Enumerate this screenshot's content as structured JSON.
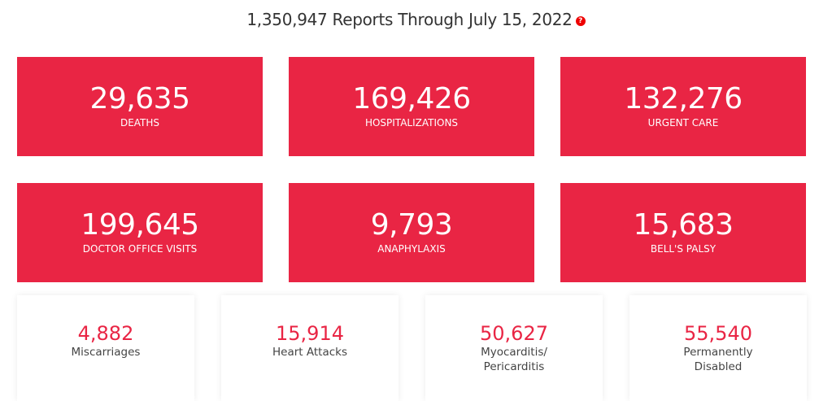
{
  "header": {
    "title": "1,350,947 Reports Through July 15, 2022",
    "help_icon": "?"
  },
  "primary_stats": [
    {
      "value": "29,635",
      "label": "DEATHS"
    },
    {
      "value": "169,426",
      "label": "HOSPITALIZATIONS"
    },
    {
      "value": "132,276",
      "label": "URGENT CARE"
    },
    {
      "value": "199,645",
      "label": "DOCTOR OFFICE VISITS"
    },
    {
      "value": "9,793",
      "label": "ANAPHYLAXIS"
    },
    {
      "value": "15,683",
      "label": "BELL'S PALSY"
    }
  ],
  "secondary_stats": [
    {
      "value": "4,882",
      "label1": "Miscarriages",
      "label2": ""
    },
    {
      "value": "15,914",
      "label1": "Heart Attacks",
      "label2": ""
    },
    {
      "value": "50,627",
      "label1": "Myocarditis/",
      "label2": "Pericarditis"
    },
    {
      "value": "55,540",
      "label1": "Permanently",
      "label2": "Disabled"
    }
  ],
  "colors": {
    "accent": "#e92544"
  }
}
